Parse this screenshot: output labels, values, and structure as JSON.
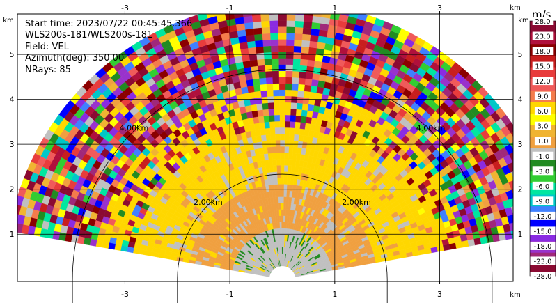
{
  "chart_data": {
    "type": "heatmap",
    "subtype": "radar-ppi-sector",
    "info_lines": [
      "Start time: 2023/07/22 00:45:45.366",
      "WLS200s-181/WLS200s-181",
      "Field: VEL",
      "Azimuth(deg): 350.00",
      "NRays: 85"
    ],
    "x_unit": "km",
    "y_unit": "km",
    "x_ticks": [
      "-3",
      "-1",
      "1",
      "3"
    ],
    "y_ticks": [
      "1",
      "2",
      "3",
      "4",
      "5"
    ],
    "xlim": [
      -5.05,
      4.4
    ],
    "ylim": [
      -0.05,
      5.9
    ],
    "grid": true,
    "range_rings": [
      {
        "km": 2.0,
        "label": "2.00km"
      },
      {
        "km": 4.0,
        "label": "4.00km"
      }
    ],
    "sector": {
      "elevation_span_deg": [
        10,
        170
      ],
      "max_range_km": 5.2,
      "dominant_values_by_range": [
        {
          "range_km": [
            0.0,
            0.9
          ],
          "value_ms": -1.0
        },
        {
          "range_km": [
            0.9,
            1.8
          ],
          "value_ms": 1.0
        },
        {
          "range_km": [
            1.8,
            2.8
          ],
          "value_ms": 3.0
        },
        {
          "range_km": [
            2.8,
            3.6
          ],
          "value_ms": "mixed"
        },
        {
          "range_km": [
            3.6,
            5.2
          ],
          "value_ms": "noise"
        }
      ]
    },
    "colorbar": {
      "title": "m/s",
      "tick_labels": [
        "28.0",
        "23.0",
        "18.0",
        "15.0",
        "12.0",
        "9.0",
        "6.0",
        "3.0",
        "1.0",
        "-1.0",
        "-3.0",
        "-6.0",
        "-9.0",
        "-12.0",
        "-15.0",
        "-18.0",
        "-23.0",
        "-28.0"
      ],
      "colors": [
        "#8b0a32",
        "#b0103c",
        "#8b0000",
        "#c81e1e",
        "#e83c3c",
        "#f05a5a",
        "#f47c4c",
        "#ffd700",
        "#ffff00",
        "#f0b432",
        "#f0a040",
        "#c0c0c0",
        "#228b22",
        "#32cd32",
        "#00e6a0",
        "#00c8c8",
        "#4080ff",
        "#0000ff",
        "#8a2be2",
        "#9932cc",
        "#a0287a",
        "#8b0a32"
      ]
    }
  }
}
